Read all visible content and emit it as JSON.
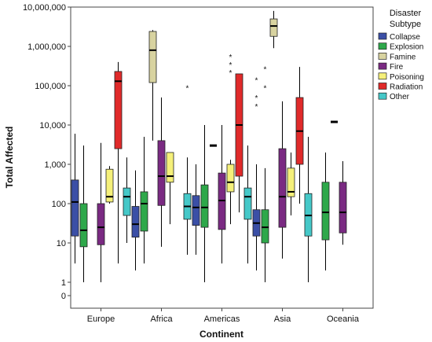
{
  "chart_data": {
    "type": "box",
    "xlabel": "Continent",
    "ylabel": "Total Affected",
    "y_scale": "log",
    "ylim": [
      0,
      20000000
    ],
    "y_ticks": [
      {
        "value": 0,
        "label": "0"
      },
      {
        "value": 1,
        "label": "1"
      },
      {
        "value": 10,
        "label": "10"
      },
      {
        "value": 100,
        "label": "100"
      },
      {
        "value": 1000,
        "label": "1,000"
      },
      {
        "value": 10000,
        "label": "10,000"
      },
      {
        "value": 100000,
        "label": "100,000"
      },
      {
        "value": 1000000,
        "label": "1,000,000"
      },
      {
        "value": 10000000,
        "label": "10,000,000"
      }
    ],
    "categories": [
      "Europe",
      "Africa",
      "Americas",
      "Asia",
      "Oceania"
    ],
    "legend": {
      "title_line1": "Disaster",
      "title_line2": "Subtype",
      "placement": "right"
    },
    "series": [
      {
        "name": "Collapse",
        "color": "#3B4FA6",
        "boxes": [
          {
            "category": "Europe",
            "whisker_low": 3,
            "q1": 15,
            "median": 110,
            "q3": 400,
            "whisker_high": 6000
          },
          {
            "category": "Africa",
            "whisker_low": 2,
            "q1": 14,
            "median": 30,
            "q3": 85,
            "whisker_high": 700
          },
          {
            "category": "Americas",
            "whisker_low": 5,
            "q1": 28,
            "median": 80,
            "q3": 160,
            "whisker_high": 1000
          },
          {
            "category": "Asia",
            "whisker_low": 2,
            "q1": 15,
            "median": 32,
            "q3": 70,
            "whisker_high": 1000
          }
        ]
      },
      {
        "name": "Explosion",
        "color": "#2EA84A",
        "boxes": [
          {
            "category": "Europe",
            "whisker_low": 1,
            "q1": 8,
            "median": 21,
            "q3": 100,
            "whisker_high": 3000
          },
          {
            "category": "Africa",
            "whisker_low": 3,
            "q1": 20,
            "median": 100,
            "q3": 200,
            "whisker_high": 5000
          },
          {
            "category": "Americas",
            "whisker_low": 1,
            "q1": 25,
            "median": 80,
            "q3": 300,
            "whisker_high": 10000
          },
          {
            "category": "Asia",
            "whisker_low": 1,
            "q1": 10,
            "median": 25,
            "q3": 70,
            "whisker_high": 800
          },
          {
            "category": "Oceania",
            "whisker_low": 2,
            "q1": 12,
            "median": 60,
            "q3": 350,
            "whisker_high": 2000
          }
        ]
      },
      {
        "name": "Famine",
        "color": "#D8D3A0",
        "boxes": [
          {
            "category": "Africa",
            "whisker_low": 4000,
            "q1": 120000,
            "median": 800000,
            "q3": 2400000,
            "whisker_high": 2600000
          },
          {
            "category": "Americas",
            "whisker_low": 3000,
            "q1": 3000,
            "median": 3000,
            "q3": 3000,
            "whisker_high": 3000
          },
          {
            "category": "Asia",
            "whisker_low": 900000,
            "q1": 1800000,
            "median": 3300000,
            "q3": 5000000,
            "whisker_high": 8000000
          },
          {
            "category": "Oceania",
            "whisker_low": 12000,
            "q1": 12000,
            "median": 12000,
            "q3": 12000,
            "whisker_high": 12000
          }
        ]
      },
      {
        "name": "Fire",
        "color": "#7A2A82",
        "boxes": [
          {
            "category": "Europe",
            "whisker_low": 1,
            "q1": 9,
            "median": 25,
            "q3": 100,
            "whisker_high": 3500
          },
          {
            "category": "Africa",
            "whisker_low": 8,
            "q1": 90,
            "median": 500,
            "q3": 4000,
            "whisker_high": 50000
          },
          {
            "category": "Americas",
            "whisker_low": 3,
            "q1": 22,
            "median": 120,
            "q3": 600,
            "whisker_high": 10000
          },
          {
            "category": "Asia",
            "whisker_low": 4,
            "q1": 25,
            "median": 150,
            "q3": 2500,
            "whisker_high": 40000
          },
          {
            "category": "Oceania",
            "whisker_low": 9,
            "q1": 18,
            "median": 60,
            "q3": 350,
            "whisker_high": 1200
          }
        ]
      },
      {
        "name": "Poisoning",
        "color": "#F5F07A",
        "boxes": [
          {
            "category": "Europe",
            "whisker_low": 100,
            "q1": 110,
            "median": 150,
            "q3": 750,
            "whisker_high": 900
          },
          {
            "category": "Africa",
            "whisker_low": 30,
            "q1": 350,
            "median": 500,
            "q3": 2000,
            "whisker_high": 2000
          },
          {
            "category": "Americas",
            "whisker_low": 30,
            "q1": 200,
            "median": 350,
            "q3": 1000,
            "whisker_high": 1300
          },
          {
            "category": "Asia",
            "whisker_low": 50,
            "q1": 150,
            "median": 200,
            "q3": 800,
            "whisker_high": 2000
          }
        ]
      },
      {
        "name": "Radiation",
        "color": "#E02A2A",
        "boxes": [
          {
            "category": "Europe",
            "whisker_low": 3,
            "q1": 2500,
            "median": 130000,
            "q3": 230000,
            "whisker_high": 400000
          },
          {
            "category": "Americas",
            "whisker_low": 60,
            "q1": 500,
            "median": 10000,
            "q3": 200000,
            "whisker_high": 200000
          },
          {
            "category": "Asia",
            "whisker_low": 100,
            "q1": 1000,
            "median": 7000,
            "q3": 50000,
            "whisker_high": 300000
          }
        ]
      },
      {
        "name": "Other",
        "color": "#45C8C8",
        "boxes": [
          {
            "category": "Europe",
            "whisker_low": 10,
            "q1": 50,
            "median": 150,
            "q3": 250,
            "whisker_high": 1500
          },
          {
            "category": "Africa",
            "whisker_low": 5,
            "q1": 40,
            "median": 85,
            "q3": 180,
            "whisker_high": 1500
          },
          {
            "category": "Americas",
            "whisker_low": 3,
            "q1": 40,
            "median": 150,
            "q3": 250,
            "whisker_high": 3000
          },
          {
            "category": "Asia",
            "whisker_low": 1,
            "q1": 15,
            "median": 50,
            "q3": 180,
            "whisker_high": 5000
          }
        ]
      }
    ],
    "outliers": [
      {
        "category": "Africa",
        "series": "Other",
        "value": 90000,
        "marker": "*"
      },
      {
        "category": "Americas",
        "series": "Poisoning",
        "value": 550000,
        "marker": "*"
      },
      {
        "category": "Americas",
        "series": "Poisoning",
        "value": 350000,
        "marker": "*"
      },
      {
        "category": "Americas",
        "series": "Poisoning",
        "value": 220000,
        "marker": "*"
      },
      {
        "category": "Asia",
        "series": "Collapse",
        "value": 140000,
        "marker": "*"
      },
      {
        "category": "Asia",
        "series": "Collapse",
        "value": 50000,
        "marker": "*"
      },
      {
        "category": "Asia",
        "series": "Collapse",
        "value": 30000,
        "marker": "*"
      },
      {
        "category": "Asia",
        "series": "Explosion",
        "value": 270000,
        "marker": "*"
      },
      {
        "category": "Asia",
        "series": "Explosion",
        "value": 90000,
        "marker": "*"
      }
    ]
  }
}
